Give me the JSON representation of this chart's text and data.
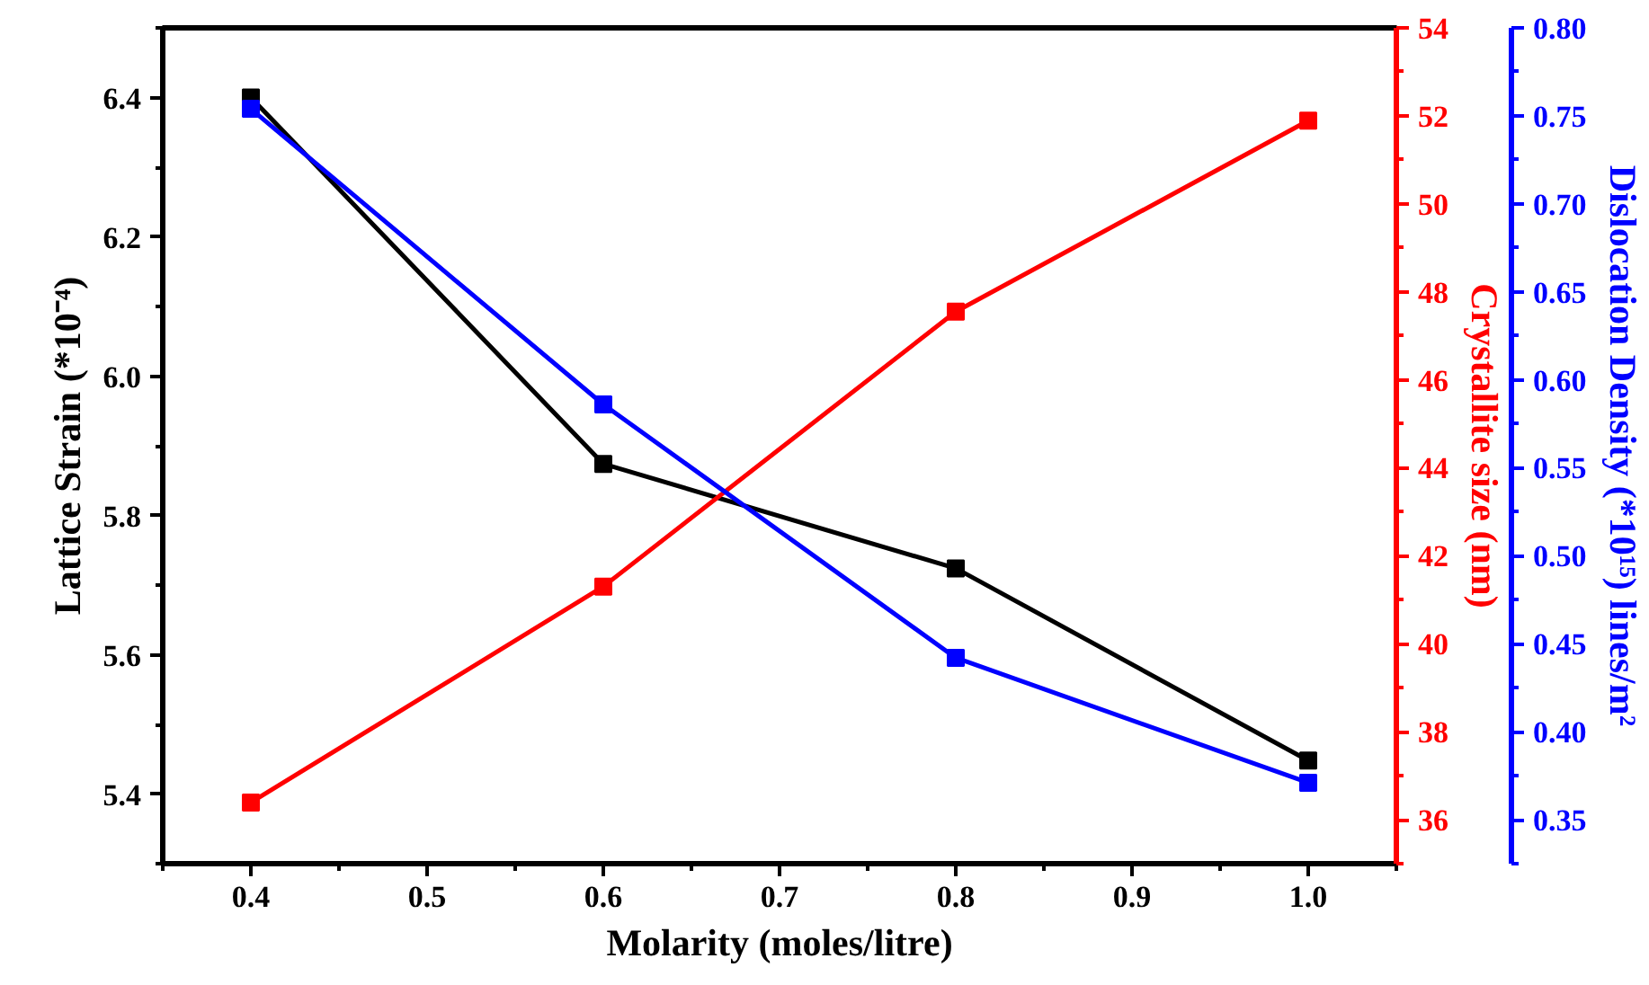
{
  "chart_data": {
    "type": "line",
    "xlabel": "Molarity (moles/litre)",
    "ylabel": "Lattice Strain (*10⁻⁴)",
    "y2label": "Crystallite size (nm)",
    "y3label": "Dislocation Density (*10¹⁵) lines/m²",
    "x": [
      0.4,
      0.6,
      0.8,
      1.0
    ],
    "series": [
      {
        "color": "#000000",
        "values": [
          6.4,
          5.874,
          5.724,
          5.448
        ],
        "axis": "y"
      },
      {
        "color": "#ff0000",
        "values": [
          36.39,
          41.3,
          47.55,
          51.89
        ],
        "axis": "y2"
      },
      {
        "color": "#0000ff",
        "values": [
          0.754,
          0.586,
          0.442,
          0.371
        ],
        "axis": "y3"
      }
    ],
    "xlim": [
      0.35,
      1.05
    ],
    "xticks": [
      {
        "value": 0.35,
        "label": null
      },
      0.4,
      {
        "value": 0.45,
        "label": null
      },
      0.5,
      {
        "value": 0.55,
        "label": null
      },
      0.6,
      {
        "value": 0.65,
        "label": null
      },
      0.7,
      {
        "value": 0.75,
        "label": null
      },
      0.8,
      {
        "value": 0.85,
        "label": null
      },
      0.9,
      {
        "value": 0.95,
        "label": null
      },
      {
        "value": 1.0,
        "label": "1.0"
      },
      {
        "value": 1.05,
        "label": null
      }
    ],
    "ylim": [
      5.3,
      6.5
    ],
    "yticks": [
      {
        "value": 5.3,
        "label": null
      },
      5.4,
      {
        "value": 5.5,
        "label": null
      },
      5.6,
      {
        "value": 5.7,
        "label": null
      },
      5.8,
      {
        "value": 5.9,
        "label": null
      },
      {
        "value": 6.0,
        "label": "6.0"
      },
      {
        "value": 6.1,
        "label": null
      },
      6.2,
      {
        "value": 6.3,
        "label": null
      },
      6.4,
      {
        "value": 6.5,
        "label": null
      }
    ],
    "y2lim": [
      35,
      54
    ],
    "y2ticks": [
      {
        "value": 35,
        "label": null
      },
      36,
      {
        "value": 37,
        "label": null
      },
      38,
      {
        "value": 39,
        "label": null
      },
      40,
      {
        "value": 41,
        "label": null
      },
      42,
      {
        "value": 43,
        "label": null
      },
      44,
      {
        "value": 45,
        "label": null
      },
      46,
      {
        "value": 47,
        "label": null
      },
      48,
      {
        "value": 49,
        "label": null
      },
      50,
      {
        "value": 51,
        "label": null
      },
      52,
      {
        "value": 53,
        "label": null
      },
      54
    ],
    "y3lim": [
      0.325,
      0.8
    ],
    "y3ticks": [
      {
        "value": 0.325,
        "label": null
      },
      {
        "value": 0.35,
        "label": "0.35"
      },
      {
        "value": 0.375,
        "label": null
      },
      {
        "value": 0.4,
        "label": "0.40"
      },
      {
        "value": 0.425,
        "label": null
      },
      {
        "value": 0.45,
        "label": "0.45"
      },
      {
        "value": 0.475,
        "label": null
      },
      {
        "value": 0.5,
        "label": "0.50"
      },
      {
        "value": 0.525,
        "label": null
      },
      {
        "value": 0.55,
        "label": "0.55"
      },
      {
        "value": 0.575,
        "label": null
      },
      {
        "value": 0.6,
        "label": "0.60"
      },
      {
        "value": 0.625,
        "label": null
      },
      {
        "value": 0.65,
        "label": "0.65"
      },
      {
        "value": 0.675,
        "label": null
      },
      {
        "value": 0.7,
        "label": "0.70"
      },
      {
        "value": 0.725,
        "label": null
      },
      {
        "value": 0.75,
        "label": "0.75"
      },
      {
        "value": 0.775,
        "label": null
      },
      {
        "value": 0.8,
        "label": "0.80"
      }
    ],
    "marker": "square",
    "line_style": "solid",
    "grid": false
  }
}
